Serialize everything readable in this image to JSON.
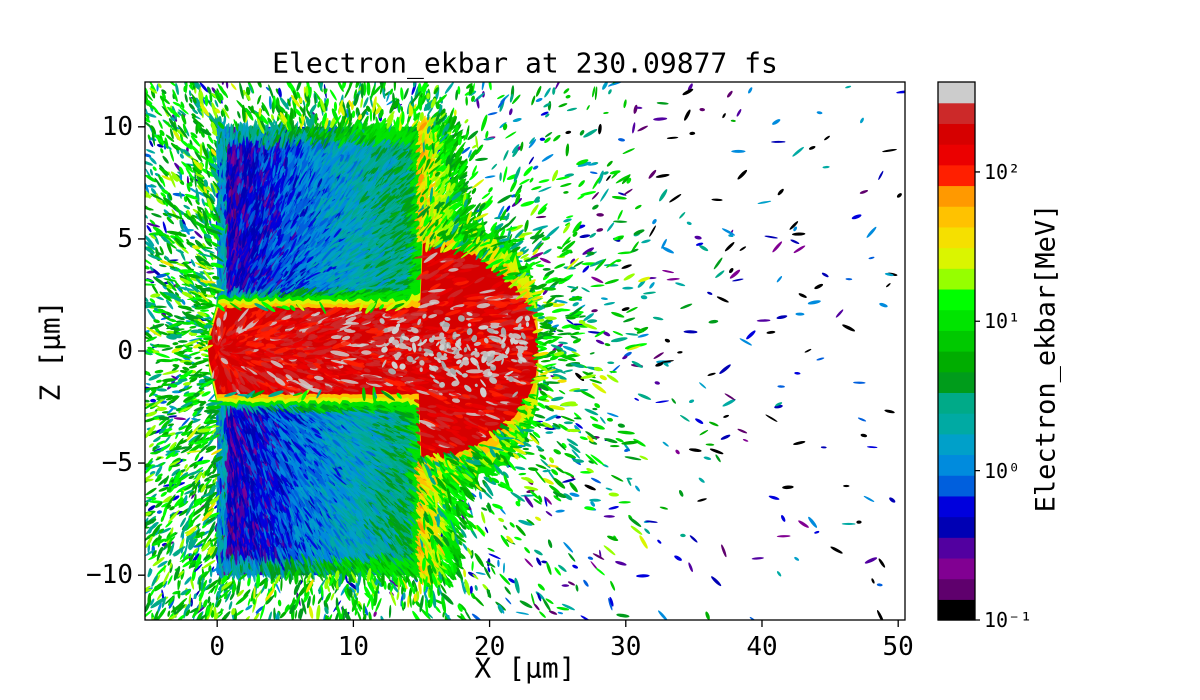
{
  "figure": {
    "background": "#ffffff"
  },
  "chart_data": {
    "type": "heatmap",
    "title": "Electron_ekbar at 230.09877 fs",
    "time_fs": 230.09877,
    "xlabel": "X [μm]",
    "ylabel": "Z [μm]",
    "xlim": [
      -5.3,
      50.5
    ],
    "ylim": [
      -12,
      12
    ],
    "grid": false,
    "xticks": {
      "values": [
        0,
        10,
        20,
        30,
        40,
        50
      ],
      "labels": [
        "0",
        "10",
        "20",
        "30",
        "40",
        "50"
      ]
    },
    "yticks": {
      "values": [
        10,
        5,
        0,
        -5,
        -10
      ],
      "labels": [
        "10",
        "5",
        "0",
        "−5",
        "−10"
      ]
    },
    "colorbar": {
      "label": "Electron_ekbar[MeV]",
      "scale": "log",
      "vmin": 0.1,
      "vmax": 400,
      "n_levels": 26,
      "colormap": "nipy_spectral",
      "colormap_stops": [
        "#000000",
        "#770088",
        "#880099",
        "#0000aa",
        "#0000dd",
        "#0077dd",
        "#0099dd",
        "#00aaaa",
        "#00aa88",
        "#009900",
        "#00bb00",
        "#00dd00",
        "#00ff00",
        "#bbff00",
        "#eeee00",
        "#ffcc00",
        "#ff9900",
        "#ff0000",
        "#dd0000",
        "#cc0000",
        "#cccccc"
      ],
      "ticks": [
        {
          "value": 0.1,
          "label": "10⁻¹"
        },
        {
          "value": 1,
          "label": "10⁰"
        },
        {
          "value": 10,
          "label": "10¹"
        },
        {
          "value": 100,
          "label": "10²"
        }
      ]
    },
    "features": {
      "target_blocks": [
        {
          "x_um": [
            0,
            15
          ],
          "z_um": [
            2,
            10
          ],
          "energy_MeV": [
            0.25,
            4
          ],
          "note": "cold target bulk, purple-to-blue-to-cyan radial streaks"
        },
        {
          "x_um": [
            0,
            15
          ],
          "z_um": [
            -10,
            -2
          ],
          "energy_MeV": [
            0.25,
            4
          ],
          "note": "cold target bulk, mirrored below axis"
        }
      ],
      "hot_channel": {
        "x_um": [
          -0.5,
          23.5
        ],
        "z_um": [
          -2,
          2
        ],
        "bulge_x_um": [
          15,
          23.5
        ],
        "bulge_halfwidth_um": 4.7,
        "energy_MeV": [
          50,
          400
        ],
        "speckle_colors": [
          "#bdbdbd",
          "#cfcfcf",
          "#a8a8a8",
          "#c8b6b6"
        ],
        "note": "red hot electron channel along z=0 with gray >250 MeV speckles near axis"
      },
      "rear_fan": {
        "x_um": [
          15,
          24
        ],
        "z_um": [
          -10,
          10
        ],
        "energy_MeV": [
          5,
          80
        ],
        "note": "yellow-orange sheath at target rear fading to green"
      },
      "corona": {
        "energy_MeV": [
          2,
          30
        ],
        "note": "jagged green spray hugging the whole target boundary"
      },
      "ejected_particles": {
        "x_um": [
          -5.3,
          50.5
        ],
        "z_um": [
          -12,
          12
        ],
        "energy_MeV": [
          0.1,
          20
        ],
        "note": "sparse elongated macro-particle streaks, density decreasing with x, colors from green/cyan to blue/purple far from target"
      }
    }
  }
}
